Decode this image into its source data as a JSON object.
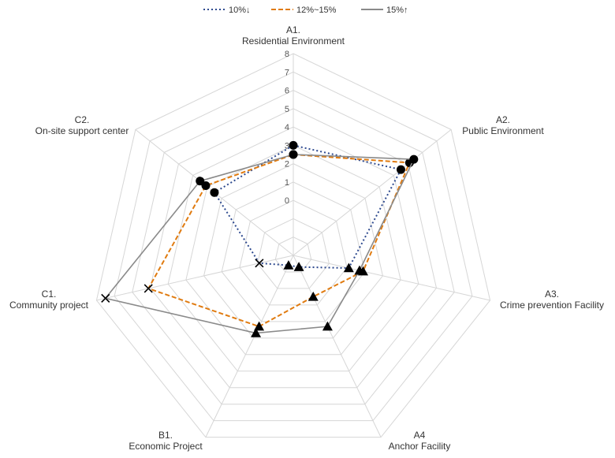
{
  "chart_data": {
    "type": "radar",
    "axes": [
      {
        "code": "A1.",
        "name": "Residential Environment"
      },
      {
        "code": "A2.",
        "name": "Public Environment"
      },
      {
        "code": "A3.",
        "name": "Crime prevention Facility"
      },
      {
        "code": "A4",
        "name": "Anchor Facility"
      },
      {
        "code": "B1.",
        "name": "Economic  Project"
      },
      {
        "code": "C1.",
        "name": "Community  project"
      },
      {
        "code": "C2.",
        "name": "On-site support center"
      }
    ],
    "rlim": [
      0,
      8
    ],
    "ticks": [
      "0",
      "1",
      "2",
      "3",
      "4",
      "5",
      "6",
      "7",
      "8"
    ],
    "legend": {
      "position": "top-center"
    },
    "series": [
      {
        "name": "10%↓",
        "line_style": "dotted",
        "color": "#2e4a8f",
        "values": [
          3,
          4.5,
          0.1,
          -2.3,
          -2.4,
          -1.1,
          2.5
        ],
        "markers": [
          "circle",
          "circle",
          "triangle",
          "triangle",
          "triangle",
          "x",
          "circle"
        ]
      },
      {
        "name": "12%~15%",
        "line_style": "dashed",
        "color": "#e07b10",
        "values": [
          2.5,
          5.1,
          0.9,
          -0.5,
          1.3,
          5.1,
          3.1
        ],
        "markers": [
          "circle",
          "circle",
          "triangle",
          "triangle",
          "triangle",
          "x",
          "circle"
        ]
      },
      {
        "name": "15%↑",
        "line_style": "solid",
        "color": "#8a8a8a",
        "values": [
          2.5,
          5.4,
          0.7,
          1.3,
          1.7,
          7.5,
          3.5
        ],
        "markers": [
          "circle",
          "circle",
          "triangle",
          "triangle",
          "triangle",
          "x",
          "circle"
        ]
      }
    ]
  },
  "colors": {
    "grid": "#d6d6d6",
    "text": "#333333",
    "tick": "#555555"
  }
}
